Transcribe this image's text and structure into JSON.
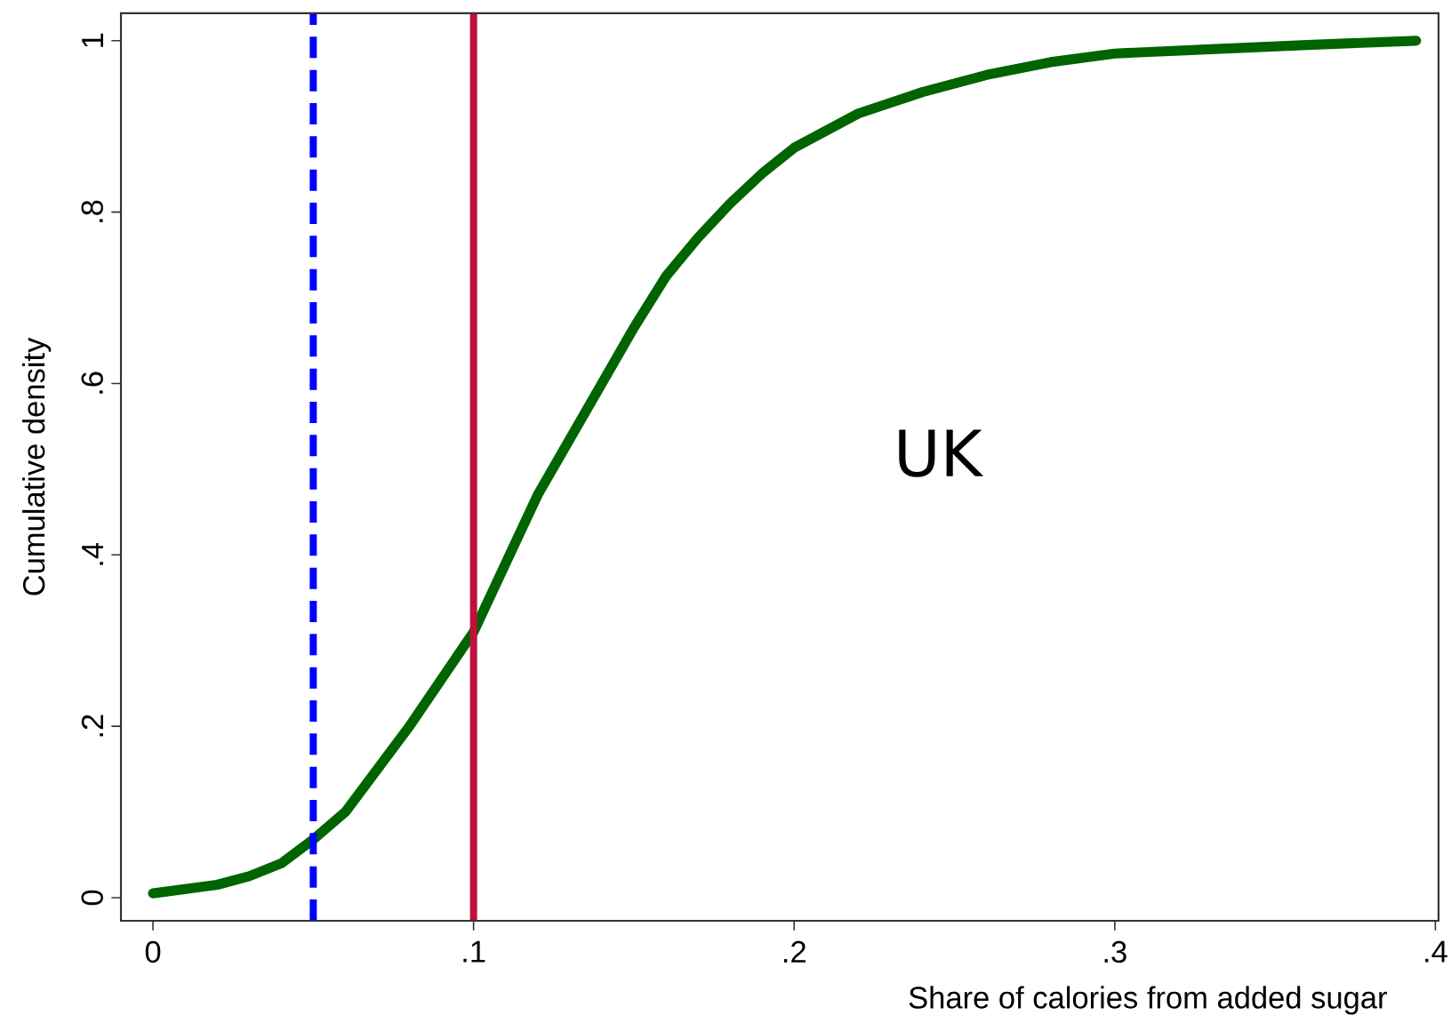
{
  "chart_data": {
    "type": "line",
    "xlabel": "Share of calories from added sugar",
    "ylabel": "Cumulative density",
    "annotations": [
      "UK"
    ],
    "series": [
      {
        "color": "#006400",
        "line_style": "solid",
        "x": [
          0,
          0.02,
          0.03,
          0.04,
          0.05,
          0.06,
          0.07,
          0.08,
          0.09,
          0.1,
          0.11,
          0.12,
          0.13,
          0.14,
          0.15,
          0.16,
          0.17,
          0.18,
          0.19,
          0.2,
          0.22,
          0.24,
          0.26,
          0.28,
          0.3,
          0.33,
          0.36,
          0.394
        ],
        "values": [
          0.005,
          0.015,
          0.025,
          0.04,
          0.068,
          0.1,
          0.15,
          0.2,
          0.255,
          0.31,
          0.39,
          0.47,
          0.535,
          0.6,
          0.665,
          0.725,
          0.77,
          0.81,
          0.845,
          0.875,
          0.915,
          0.94,
          0.96,
          0.975,
          0.985,
          0.99,
          0.995,
          1.0
        ]
      }
    ],
    "ref_lines": [
      {
        "axis": "x",
        "value": 0.05,
        "color": "#0000ff",
        "line_style": "dashed"
      },
      {
        "axis": "x",
        "value": 0.1,
        "color": "#c0103c",
        "line_style": "solid"
      }
    ],
    "xlim": [
      -0.01,
      0.401
    ],
    "ylim": [
      -0.027,
      1.032
    ],
    "xticks": [
      0,
      {
        "value": 0.1,
        "label": ".1"
      },
      {
        "value": 0.2,
        "label": ".2"
      },
      {
        "value": 0.3,
        "label": ".3"
      },
      {
        "value": 0.4,
        "label": ".4"
      }
    ],
    "yticks": [
      0,
      {
        "value": 0.2,
        "label": ".2"
      },
      {
        "value": 0.4,
        "label": ".4"
      },
      {
        "value": 0.6,
        "label": ".6"
      },
      {
        "value": 0.8,
        "label": ".8"
      },
      1
    ],
    "grid": false,
    "marker": "none"
  }
}
